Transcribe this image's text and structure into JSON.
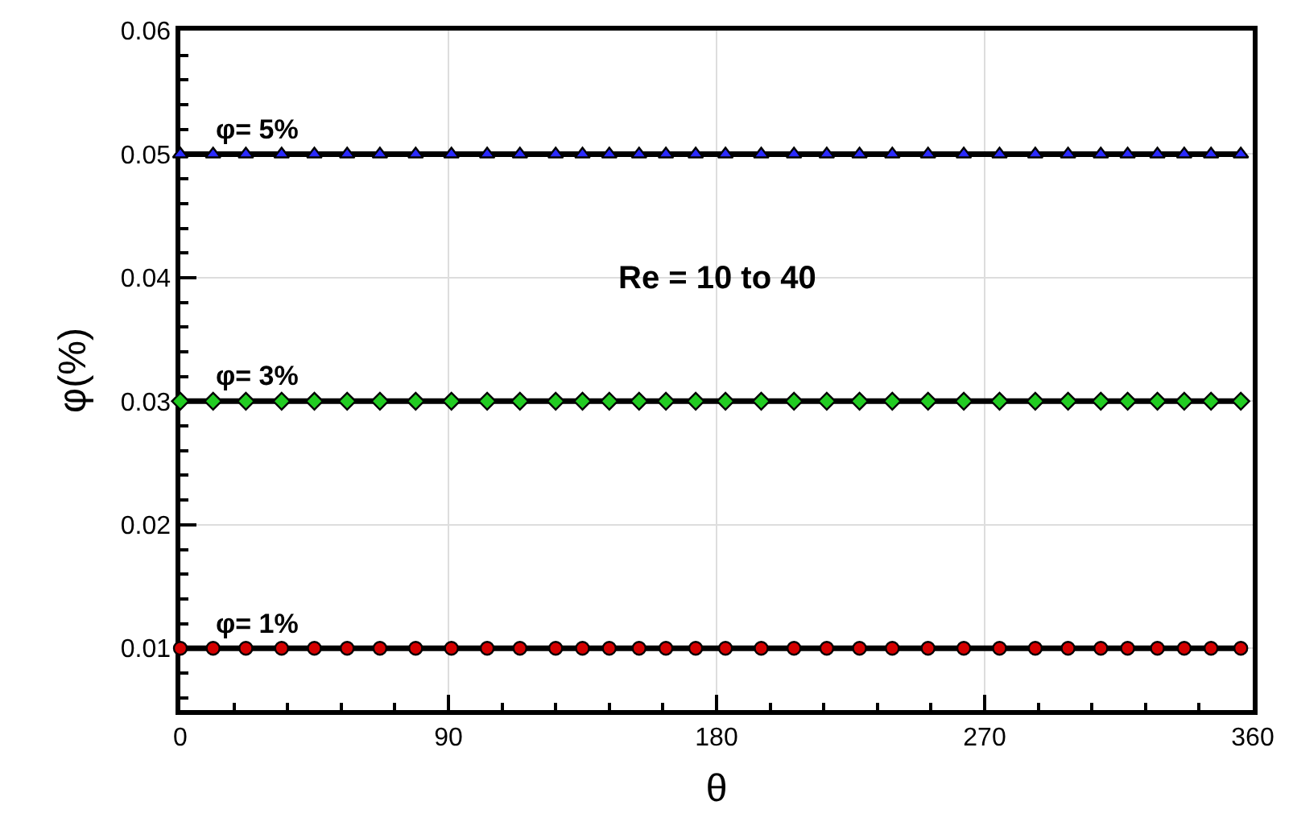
{
  "chart_data": {
    "type": "line",
    "xlabel": "θ",
    "ylabel": "φ(%)",
    "x": [
      0,
      11,
      22,
      34,
      45,
      56,
      67,
      79,
      91,
      103,
      114,
      126,
      135,
      144,
      154,
      163,
      173,
      183,
      195,
      206,
      217,
      228,
      239,
      251,
      263,
      275,
      287,
      298,
      309,
      318,
      328,
      337,
      346,
      356
    ],
    "series": [
      {
        "name": "φ= 1%",
        "color": "#d40000",
        "marker": "circle",
        "values": [
          0.01,
          0.01,
          0.01,
          0.01,
          0.01,
          0.01,
          0.01,
          0.01,
          0.01,
          0.01,
          0.01,
          0.01,
          0.01,
          0.01,
          0.01,
          0.01,
          0.01,
          0.01,
          0.01,
          0.01,
          0.01,
          0.01,
          0.01,
          0.01,
          0.01,
          0.01,
          0.01,
          0.01,
          0.01,
          0.01,
          0.01,
          0.01,
          0.01,
          0.01
        ]
      },
      {
        "name": "φ= 3%",
        "color": "#22cc22",
        "marker": "diamond",
        "values": [
          0.03,
          0.03,
          0.03,
          0.03,
          0.03,
          0.03,
          0.03,
          0.03,
          0.03,
          0.03,
          0.03,
          0.03,
          0.03,
          0.03,
          0.03,
          0.03,
          0.03,
          0.03,
          0.03,
          0.03,
          0.03,
          0.03,
          0.03,
          0.03,
          0.03,
          0.03,
          0.03,
          0.03,
          0.03,
          0.03,
          0.03,
          0.03,
          0.03,
          0.03
        ]
      },
      {
        "name": "φ= 5%",
        "color": "#2a2aff",
        "marker": "triangle",
        "values": [
          0.05,
          0.05,
          0.05,
          0.05,
          0.05,
          0.05,
          0.05,
          0.05,
          0.05,
          0.05,
          0.05,
          0.05,
          0.05,
          0.05,
          0.05,
          0.05,
          0.05,
          0.05,
          0.05,
          0.05,
          0.05,
          0.05,
          0.05,
          0.05,
          0.05,
          0.05,
          0.05,
          0.05,
          0.05,
          0.05,
          0.05,
          0.05,
          0.05,
          0.05
        ]
      }
    ],
    "annotations": [
      "Re = 10 to 40"
    ],
    "xlim": [
      0,
      360
    ],
    "xticks": [
      0,
      {
        "value": 18,
        "label": null
      },
      {
        "value": 36,
        "label": null
      },
      {
        "value": 54,
        "label": null
      },
      {
        "value": 72,
        "label": null
      },
      90,
      {
        "value": 108,
        "label": null
      },
      {
        "value": 126,
        "label": null
      },
      {
        "value": 144,
        "label": null
      },
      {
        "value": 162,
        "label": null
      },
      180,
      {
        "value": 198,
        "label": null
      },
      {
        "value": 216,
        "label": null
      },
      {
        "value": 234,
        "label": null
      },
      {
        "value": 252,
        "label": null
      },
      270,
      {
        "value": 288,
        "label": null
      },
      {
        "value": 306,
        "label": null
      },
      {
        "value": 324,
        "label": null
      },
      {
        "value": 342,
        "label": null
      },
      360
    ],
    "ylim": [
      0.005,
      0.06
    ],
    "yticks": [
      {
        "value": 0.006,
        "label": null
      },
      {
        "value": 0.008,
        "label": null
      },
      0.01,
      {
        "value": 0.012,
        "label": null
      },
      {
        "value": 0.014,
        "label": null
      },
      {
        "value": 0.016,
        "label": null
      },
      {
        "value": 0.018,
        "label": null
      },
      0.02,
      {
        "value": 0.022,
        "label": null
      },
      {
        "value": 0.024,
        "label": null
      },
      {
        "value": 0.026,
        "label": null
      },
      {
        "value": 0.028,
        "label": null
      },
      0.03,
      {
        "value": 0.032,
        "label": null
      },
      {
        "value": 0.034,
        "label": null
      },
      {
        "value": 0.036,
        "label": null
      },
      {
        "value": 0.038,
        "label": null
      },
      0.04,
      {
        "value": 0.042,
        "label": null
      },
      {
        "value": 0.044,
        "label": null
      },
      {
        "value": 0.046,
        "label": null
      },
      {
        "value": 0.048,
        "label": null
      },
      0.05,
      {
        "value": 0.052,
        "label": null
      },
      {
        "value": 0.054,
        "label": null
      },
      {
        "value": 0.056,
        "label": null
      },
      {
        "value": 0.058,
        "label": null
      },
      0.06
    ],
    "grid": true,
    "legend": false,
    "line_style": "solid"
  }
}
